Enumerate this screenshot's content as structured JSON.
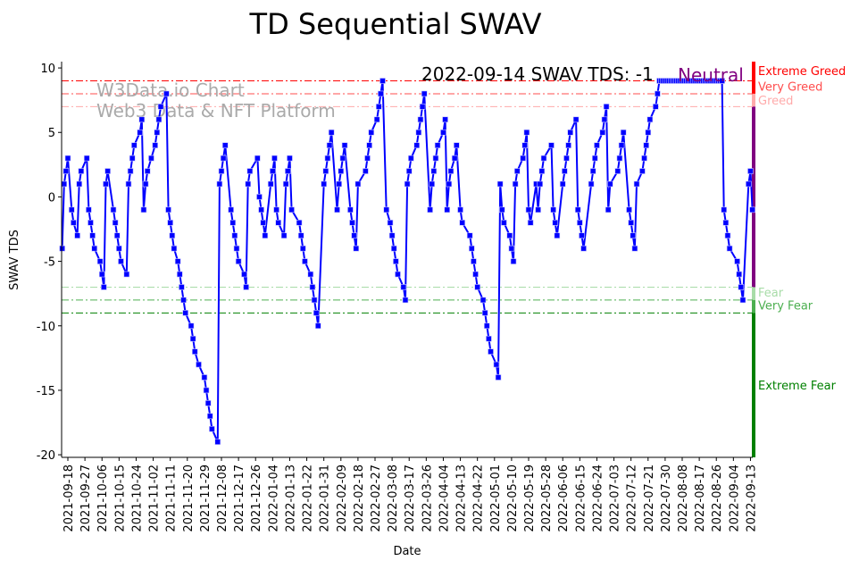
{
  "chart_data": {
    "type": "line",
    "title": "TD Sequential SWAV",
    "xlabel": "Date",
    "ylabel": "SWAV TDS",
    "start_date": "2021-09-15",
    "x_unit": "days since start_date",
    "xlim": [
      -0.3,
      364.2
    ],
    "ylim": [
      -20.2,
      10.49
    ],
    "grid": false,
    "series_color": "#0000ff",
    "yticks": [
      10,
      5,
      0,
      -5,
      -10,
      -15,
      -20
    ],
    "xtick_start_day": 3,
    "xtick_step_days": 9,
    "xtick_labels": [
      "2021-09-18",
      "2021-09-27",
      "2021-10-06",
      "2021-10-15",
      "2021-10-24",
      "2021-11-02",
      "2021-11-11",
      "2021-11-20",
      "2021-11-29",
      "2021-12-08",
      "2021-12-17",
      "2021-12-26",
      "2022-01-04",
      "2022-01-13",
      "2022-01-22",
      "2022-01-31",
      "2022-02-09",
      "2022-02-18",
      "2022-02-27",
      "2022-03-08",
      "2022-03-17",
      "2022-03-26",
      "2022-04-04",
      "2022-04-13",
      "2022-04-22",
      "2022-05-01",
      "2022-05-10",
      "2022-05-19",
      "2022-05-28",
      "2022-06-06",
      "2022-06-15",
      "2022-06-24",
      "2022-07-03",
      "2022-07-12",
      "2022-07-21",
      "2022-07-30",
      "2022-08-08",
      "2022-08-17",
      "2022-08-26",
      "2022-09-04",
      "2022-09-13"
    ],
    "points": [
      [
        0,
        -4
      ],
      [
        1,
        1
      ],
      [
        2,
        2
      ],
      [
        3,
        3
      ],
      [
        5,
        -1
      ],
      [
        6,
        -2
      ],
      [
        8,
        -3
      ],
      [
        9,
        1
      ],
      [
        10,
        2
      ],
      [
        13,
        3
      ],
      [
        14,
        -1
      ],
      [
        15,
        -2
      ],
      [
        16,
        -3
      ],
      [
        17,
        -4
      ],
      [
        20,
        -5
      ],
      [
        21,
        -6
      ],
      [
        22,
        -7
      ],
      [
        23,
        1
      ],
      [
        24,
        2
      ],
      [
        27,
        -1
      ],
      [
        28,
        -2
      ],
      [
        29,
        -3
      ],
      [
        30,
        -4
      ],
      [
        31,
        -5
      ],
      [
        34,
        -6
      ],
      [
        35,
        1
      ],
      [
        36,
        2
      ],
      [
        37,
        3
      ],
      [
        38,
        4
      ],
      [
        41,
        5
      ],
      [
        42,
        6
      ],
      [
        43,
        -1
      ],
      [
        44,
        1
      ],
      [
        45,
        2
      ],
      [
        47,
        3
      ],
      [
        49,
        4
      ],
      [
        50,
        5
      ],
      [
        51,
        6
      ],
      [
        52,
        7
      ],
      [
        55,
        8
      ],
      [
        56,
        -1
      ],
      [
        57,
        -2
      ],
      [
        58,
        -3
      ],
      [
        59,
        -4
      ],
      [
        61,
        -5
      ],
      [
        62,
        -6
      ],
      [
        63,
        -7
      ],
      [
        64,
        -8
      ],
      [
        65,
        -9
      ],
      [
        68,
        -10
      ],
      [
        69,
        -11
      ],
      [
        70,
        -12
      ],
      [
        72,
        -13
      ],
      [
        75,
        -14
      ],
      [
        76,
        -15
      ],
      [
        77,
        -16
      ],
      [
        78,
        -17
      ],
      [
        79,
        -18
      ],
      [
        82,
        -19
      ],
      [
        83,
        1
      ],
      [
        84,
        2
      ],
      [
        85,
        3
      ],
      [
        86,
        4
      ],
      [
        89,
        -1
      ],
      [
        90,
        -2
      ],
      [
        91,
        -3
      ],
      [
        92,
        -4
      ],
      [
        93,
        -5
      ],
      [
        96,
        -6
      ],
      [
        97,
        -7
      ],
      [
        98,
        1
      ],
      [
        99,
        2
      ],
      [
        103,
        3
      ],
      [
        104,
        0
      ],
      [
        105,
        -1
      ],
      [
        106,
        -2
      ],
      [
        107,
        -3
      ],
      [
        110,
        1
      ],
      [
        111,
        2
      ],
      [
        112,
        3
      ],
      [
        113,
        -1
      ],
      [
        114,
        -2
      ],
      [
        117,
        -3
      ],
      [
        118,
        1
      ],
      [
        119,
        2
      ],
      [
        120,
        3
      ],
      [
        121,
        -1
      ],
      [
        125,
        -2
      ],
      [
        126,
        -3
      ],
      [
        127,
        -4
      ],
      [
        128,
        -5
      ],
      [
        131,
        -6
      ],
      [
        132,
        -7
      ],
      [
        133,
        -8
      ],
      [
        134,
        -9
      ],
      [
        135,
        -10
      ],
      [
        138,
        1
      ],
      [
        139,
        2
      ],
      [
        140,
        3
      ],
      [
        141,
        4
      ],
      [
        142,
        5
      ],
      [
        145,
        -1
      ],
      [
        146,
        1
      ],
      [
        147,
        2
      ],
      [
        148,
        3
      ],
      [
        149,
        4
      ],
      [
        152,
        -1
      ],
      [
        153,
        -2
      ],
      [
        154,
        -3
      ],
      [
        155,
        -4
      ],
      [
        156,
        1
      ],
      [
        160,
        2
      ],
      [
        161,
        3
      ],
      [
        162,
        4
      ],
      [
        163,
        5
      ],
      [
        166,
        6
      ],
      [
        167,
        7
      ],
      [
        168,
        8
      ],
      [
        169,
        9
      ],
      [
        171,
        -1
      ],
      [
        173,
        -2
      ],
      [
        174,
        -3
      ],
      [
        175,
        -4
      ],
      [
        176,
        -5
      ],
      [
        177,
        -6
      ],
      [
        180,
        -7
      ],
      [
        181,
        -8
      ],
      [
        182,
        1
      ],
      [
        183,
        2
      ],
      [
        184,
        3
      ],
      [
        187,
        4
      ],
      [
        188,
        5
      ],
      [
        189,
        6
      ],
      [
        190,
        7
      ],
      [
        191,
        8
      ],
      [
        194,
        -1
      ],
      [
        195,
        1
      ],
      [
        196,
        2
      ],
      [
        197,
        3
      ],
      [
        198,
        4
      ],
      [
        201,
        5
      ],
      [
        202,
        6
      ],
      [
        203,
        -1
      ],
      [
        204,
        1
      ],
      [
        205,
        2
      ],
      [
        207,
        3
      ],
      [
        208,
        4
      ],
      [
        210,
        -1
      ],
      [
        211,
        -2
      ],
      [
        215,
        -3
      ],
      [
        216,
        -4
      ],
      [
        217,
        -5
      ],
      [
        218,
        -6
      ],
      [
        219,
        -7
      ],
      [
        222,
        -8
      ],
      [
        223,
        -9
      ],
      [
        224,
        -10
      ],
      [
        225,
        -11
      ],
      [
        226,
        -12
      ],
      [
        229,
        -13
      ],
      [
        230,
        -14
      ],
      [
        231,
        1
      ],
      [
        232,
        -1
      ],
      [
        233,
        -2
      ],
      [
        236,
        -3
      ],
      [
        237,
        -4
      ],
      [
        238,
        -5
      ],
      [
        239,
        1
      ],
      [
        240,
        2
      ],
      [
        243,
        3
      ],
      [
        244,
        4
      ],
      [
        245,
        5
      ],
      [
        246,
        -1
      ],
      [
        247,
        -2
      ],
      [
        250,
        1
      ],
      [
        251,
        -1
      ],
      [
        252,
        1
      ],
      [
        253,
        2
      ],
      [
        254,
        3
      ],
      [
        258,
        4
      ],
      [
        259,
        -1
      ],
      [
        260,
        -2
      ],
      [
        261,
        -3
      ],
      [
        264,
        1
      ],
      [
        265,
        2
      ],
      [
        266,
        3
      ],
      [
        267,
        4
      ],
      [
        268,
        5
      ],
      [
        271,
        6
      ],
      [
        272,
        -1
      ],
      [
        273,
        -2
      ],
      [
        274,
        -3
      ],
      [
        275,
        -4
      ],
      [
        279,
        1
      ],
      [
        280,
        2
      ],
      [
        281,
        3
      ],
      [
        282,
        4
      ],
      [
        285,
        5
      ],
      [
        286,
        6
      ],
      [
        287,
        7
      ],
      [
        288,
        -1
      ],
      [
        289,
        1
      ],
      [
        293,
        2
      ],
      [
        294,
        3
      ],
      [
        295,
        4
      ],
      [
        296,
        5
      ],
      [
        299,
        -1
      ],
      [
        300,
        -2
      ],
      [
        301,
        -3
      ],
      [
        302,
        -4
      ],
      [
        303,
        1
      ],
      [
        306,
        2
      ],
      [
        307,
        3
      ],
      [
        308,
        4
      ],
      [
        309,
        5
      ],
      [
        310,
        6
      ],
      [
        313,
        7
      ],
      [
        314,
        8
      ],
      [
        315,
        9
      ],
      [
        316,
        9
      ],
      [
        317,
        9
      ],
      [
        318,
        9
      ],
      [
        319,
        9
      ],
      [
        320,
        9
      ],
      [
        321,
        9
      ],
      [
        322,
        9
      ],
      [
        323,
        9
      ],
      [
        324,
        9
      ],
      [
        325,
        9
      ],
      [
        326,
        9
      ],
      [
        327,
        9
      ],
      [
        328,
        9
      ],
      [
        329,
        9
      ],
      [
        330,
        9
      ],
      [
        331,
        9
      ],
      [
        332,
        9
      ],
      [
        333,
        9
      ],
      [
        334,
        9
      ],
      [
        335,
        9
      ],
      [
        336,
        9
      ],
      [
        337,
        9
      ],
      [
        338,
        9
      ],
      [
        339,
        9
      ],
      [
        340,
        9
      ],
      [
        341,
        9
      ],
      [
        342,
        9
      ],
      [
        343,
        9
      ],
      [
        344,
        9
      ],
      [
        345,
        9
      ],
      [
        346,
        9
      ],
      [
        347,
        9
      ],
      [
        348,
        9
      ],
      [
        349,
        -1
      ],
      [
        350,
        -2
      ],
      [
        351,
        -3
      ],
      [
        352,
        -4
      ],
      [
        356,
        -5
      ],
      [
        357,
        -6
      ],
      [
        358,
        -7
      ],
      [
        359,
        -8
      ],
      [
        362,
        1
      ],
      [
        363,
        2
      ],
      [
        364,
        -1
      ]
    ],
    "thresholds": [
      {
        "value": 9,
        "label": "Extreme Greed",
        "color": "#ff0000"
      },
      {
        "value": 8,
        "label": "Very Greed",
        "color": "#ff4d4d"
      },
      {
        "value": 7,
        "label": "Greed",
        "color": "#ffaaaa"
      },
      {
        "value": -7,
        "label": "Fear",
        "color": "#a8dca8"
      },
      {
        "value": -8,
        "label": "Very Fear",
        "color": "#4caf50"
      },
      {
        "value": -9,
        "label": "Extreme Fear",
        "color": "#008000"
      }
    ],
    "neutral_color": "#800080",
    "annotation": {
      "text": "2022-09-14 SWAV TDS: -1",
      "state": "Neutral"
    },
    "watermark": [
      "W3Data.io Chart",
      "Web3 Data & NFT Platform"
    ]
  }
}
